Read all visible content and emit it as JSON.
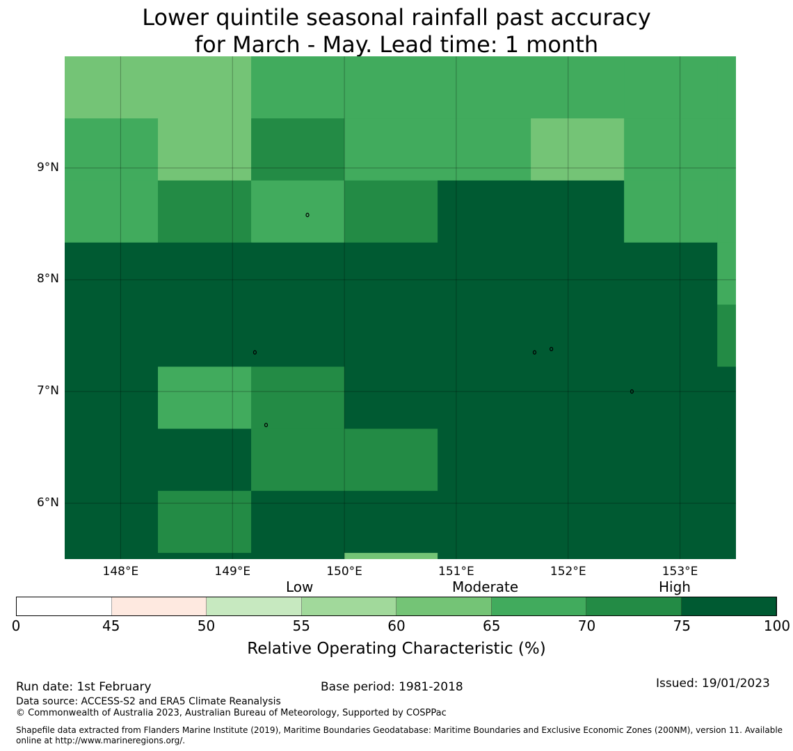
{
  "title": {
    "line1": "Lower quintile seasonal rainfall past accuracy",
    "line2": "for March - May. Lead time: 1 month"
  },
  "map": {
    "lon_range": [
      147.5,
      153.5
    ],
    "lat_range": [
      5.5,
      10.0
    ],
    "grid_lon0": 147.5,
    "grid_lon_step": 0.8333,
    "grid_lat0": 10.0,
    "grid_lat_step": 0.5556,
    "lon_ticks": [
      {
        "value": 148,
        "label": "148°E"
      },
      {
        "value": 149,
        "label": "149°E"
      },
      {
        "value": 150,
        "label": "150°E"
      },
      {
        "value": 151,
        "label": "151°E"
      },
      {
        "value": 152,
        "label": "152°E"
      },
      {
        "value": 153,
        "label": "153°E"
      }
    ],
    "lat_ticks": [
      {
        "value": 9,
        "label": "9°N"
      },
      {
        "value": 8,
        "label": "8°N"
      },
      {
        "value": 7,
        "label": "7°N"
      },
      {
        "value": 6,
        "label": "6°N"
      }
    ],
    "cell_classes": [
      [
        4,
        4,
        5,
        5,
        5,
        5,
        5,
        5
      ],
      [
        5,
        4,
        6,
        5,
        5,
        4,
        5,
        5
      ],
      [
        5,
        6,
        5,
        6,
        7,
        7,
        5,
        5
      ],
      [
        7,
        7,
        7,
        7,
        7,
        7,
        7,
        5
      ],
      [
        7,
        7,
        7,
        7,
        7,
        7,
        7,
        6
      ],
      [
        7,
        5,
        6,
        7,
        7,
        7,
        7,
        7
      ],
      [
        7,
        7,
        6,
        6,
        7,
        7,
        7,
        7
      ],
      [
        7,
        6,
        7,
        7,
        7,
        7,
        7,
        7
      ],
      [
        7,
        7,
        7,
        4,
        7,
        7,
        7,
        7
      ]
    ]
  },
  "colorbar": {
    "bins": [
      {
        "from": 0,
        "to": 45,
        "color": "#ffffff"
      },
      {
        "from": 45,
        "to": 50,
        "color": "#fee9e0"
      },
      {
        "from": 50,
        "to": 55,
        "color": "#c7e9c0"
      },
      {
        "from": 55,
        "to": 60,
        "color": "#a1d99b"
      },
      {
        "from": 60,
        "to": 65,
        "color": "#74c476"
      },
      {
        "from": 65,
        "to": 70,
        "color": "#41ab5d"
      },
      {
        "from": 70,
        "to": 75,
        "color": "#238b45"
      },
      {
        "from": 75,
        "to": 100,
        "color": "#005a32"
      }
    ],
    "tick_labels": [
      "0",
      "45",
      "50",
      "55",
      "60",
      "65",
      "70",
      "75",
      "100"
    ],
    "category_low": "Low",
    "category_moderate": "Moderate",
    "category_high": "High",
    "label": "Relative Operating Characteristic (%)"
  },
  "footer": {
    "run_date": "Run date: 1st February",
    "base_period": "Base period: 1981-2018",
    "issued": "Issued: 19/01/2023",
    "data_source": "Data source: ACCESS-S2 and ERA5 Climate Reanalysis",
    "copyright": "© Commonwealth of Australia 2023, Australian Bureau of Meteorology, Supported by COSPPac",
    "shapefile_line1": "Shapefile data extracted from Flanders Marine Institute (2019), Maritime Boundaries Geodatabase: Maritime Boundaries and Exclusive Economic Zones (200NM), version 11. Available",
    "shapefile_line2": "online at http://www.marineregions.org/."
  }
}
